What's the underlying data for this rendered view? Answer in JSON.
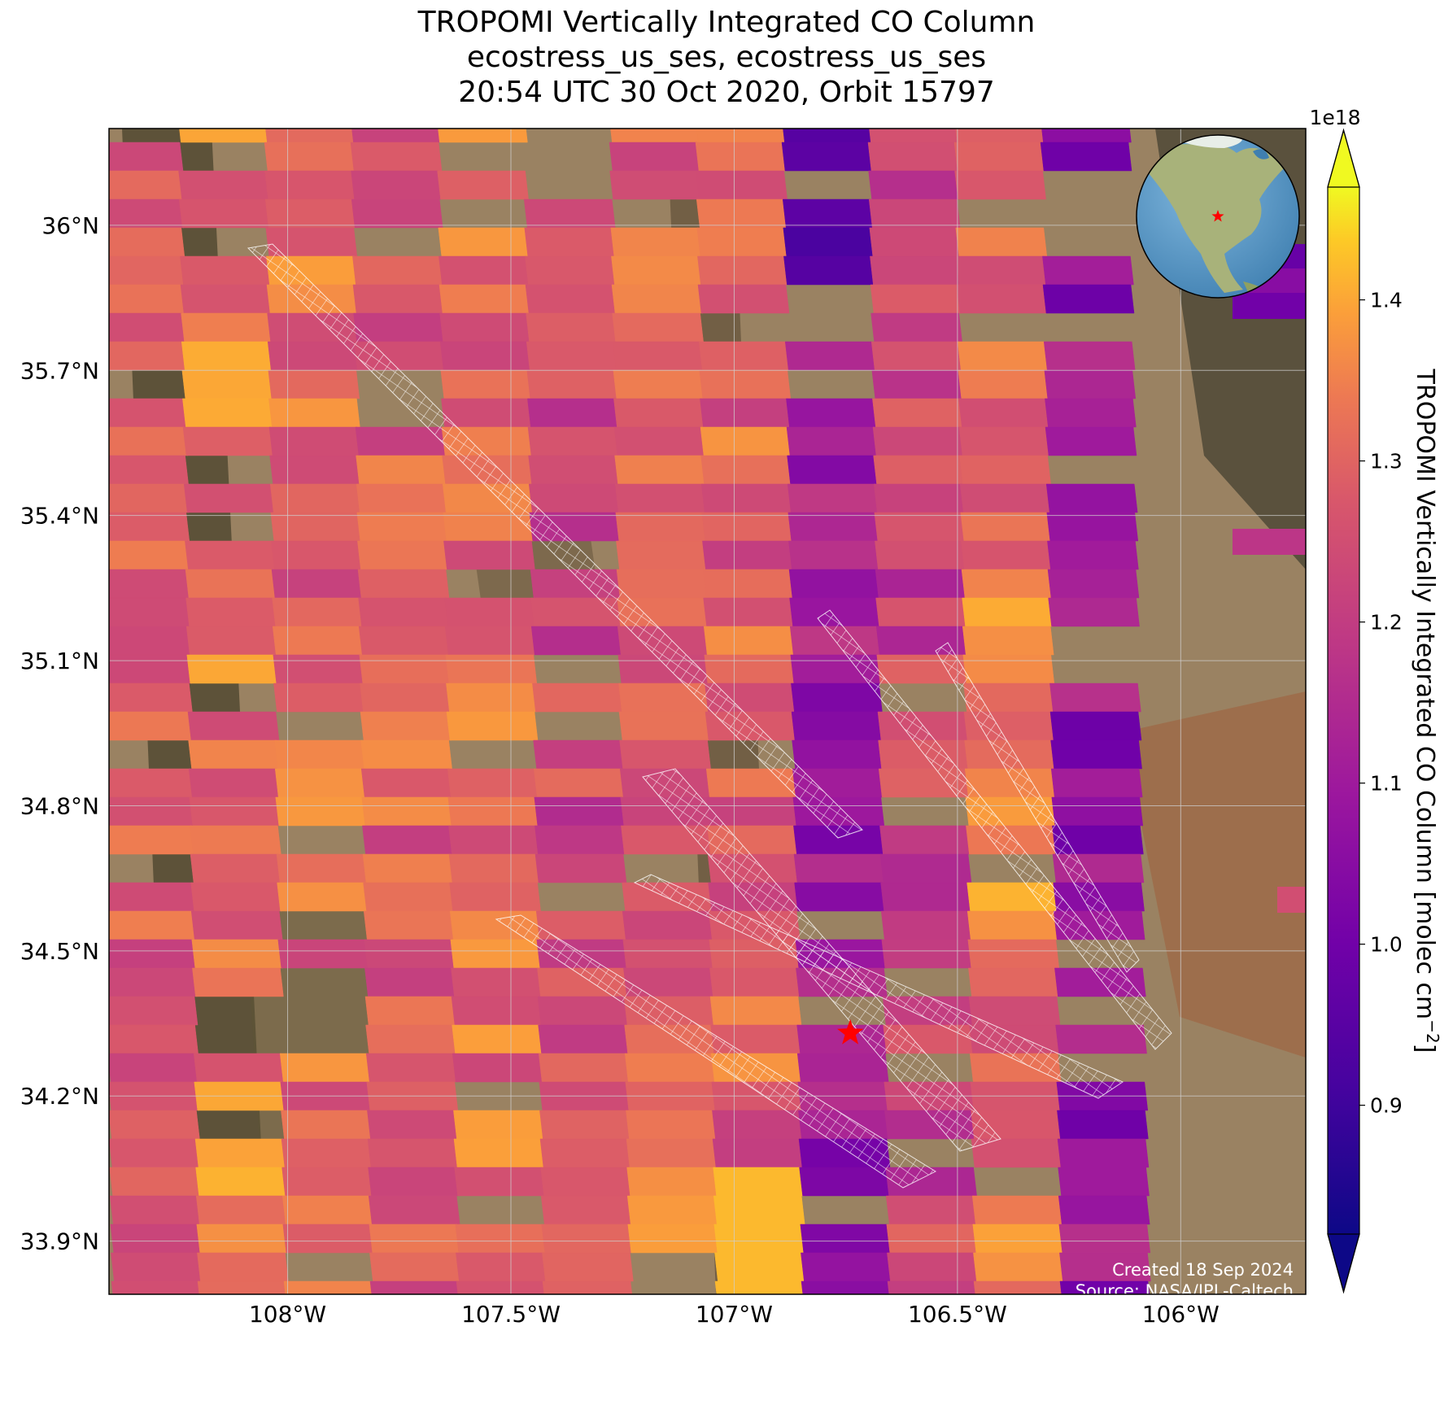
{
  "title": {
    "line1": "TROPOMI Vertically Integrated CO Column",
    "line2": "ecostress_us_ses, ecostress_us_ses",
    "line3": "20:54 UTC 30 Oct 2020, Orbit 15797"
  },
  "map": {
    "lon_range": [
      -108.4,
      -105.72
    ],
    "lat_range": [
      33.79,
      36.2
    ],
    "lat_ticks": [
      {
        "value": 36.0,
        "label": "36°N"
      },
      {
        "value": 35.7,
        "label": "35.7°N"
      },
      {
        "value": 35.4,
        "label": "35.4°N"
      },
      {
        "value": 35.1,
        "label": "35.1°N"
      },
      {
        "value": 34.8,
        "label": "34.8°N"
      },
      {
        "value": 34.5,
        "label": "34.5°N"
      },
      {
        "value": 34.2,
        "label": "34.2°N"
      },
      {
        "value": 33.9,
        "label": "33.9°N"
      }
    ],
    "lon_ticks": [
      {
        "value": -108.0,
        "label": "108°W"
      },
      {
        "value": -107.5,
        "label": "107.5°W"
      },
      {
        "value": -107.0,
        "label": "107°W"
      },
      {
        "value": -106.5,
        "label": "106.5°W"
      },
      {
        "value": -106.0,
        "label": "106°W"
      }
    ],
    "target_marker": {
      "lon": -106.74,
      "lat": 34.33,
      "symbol": "star",
      "color": "#ff0000"
    },
    "gridlines": true,
    "basemap": "satellite imagery"
  },
  "colorbar": {
    "label": "TROPOMI Vertically Integrated CO Column [molec cm",
    "label_sup": "−2",
    "label_end": "]",
    "exponent": "1e18",
    "range": [
      0.82,
      1.47
    ],
    "ticks": [
      {
        "value": 0.9,
        "label": "0.9"
      },
      {
        "value": 1.0,
        "label": "1.0"
      },
      {
        "value": 1.1,
        "label": "1.1"
      },
      {
        "value": 1.2,
        "label": "1.2"
      },
      {
        "value": 1.3,
        "label": "1.3"
      },
      {
        "value": 1.4,
        "label": "1.4"
      }
    ],
    "colormap": "plasma",
    "extend": "both"
  },
  "inset_globe": {
    "marker_color": "#ff0000"
  },
  "footer": {
    "created": "Created 18 Sep 2024",
    "source": "Source: NASA/JPL-Caltech"
  }
}
